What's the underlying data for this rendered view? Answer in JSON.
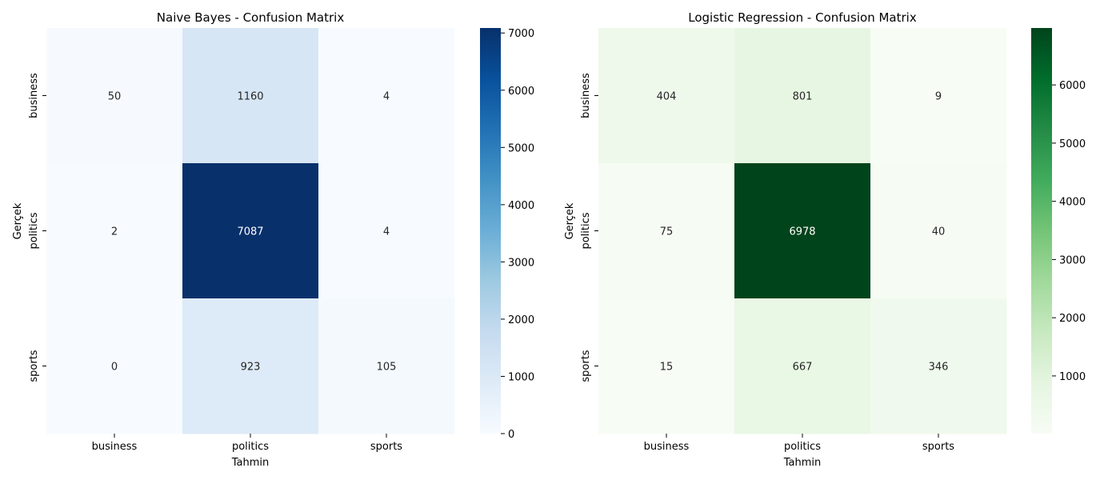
{
  "chart_data": [
    {
      "type": "heatmap",
      "title": "Naive Bayes - Confusion Matrix",
      "xlabel": "Tahmin",
      "ylabel": "Gerçek",
      "x_categories": [
        "business",
        "politics",
        "sports"
      ],
      "y_categories": [
        "business",
        "politics",
        "sports"
      ],
      "values": [
        [
          50,
          1160,
          4
        ],
        [
          2,
          7087,
          4
        ],
        [
          0,
          923,
          105
        ]
      ],
      "colormap": "Blues",
      "colorbar": {
        "min": 0,
        "max": 7087,
        "ticks": [
          0,
          1000,
          2000,
          3000,
          4000,
          5000,
          6000,
          7000
        ]
      }
    },
    {
      "type": "heatmap",
      "title": "Logistic Regression - Confusion Matrix",
      "xlabel": "Tahmin",
      "ylabel": "Gerçek",
      "x_categories": [
        "business",
        "politics",
        "sports"
      ],
      "y_categories": [
        "business",
        "politics",
        "sports"
      ],
      "values": [
        [
          404,
          801,
          9
        ],
        [
          75,
          6978,
          40
        ],
        [
          15,
          667,
          346
        ]
      ],
      "colormap": "Greens",
      "colorbar": {
        "min": 9,
        "max": 6978,
        "ticks": [
          1000,
          2000,
          3000,
          4000,
          5000,
          6000
        ]
      }
    }
  ]
}
